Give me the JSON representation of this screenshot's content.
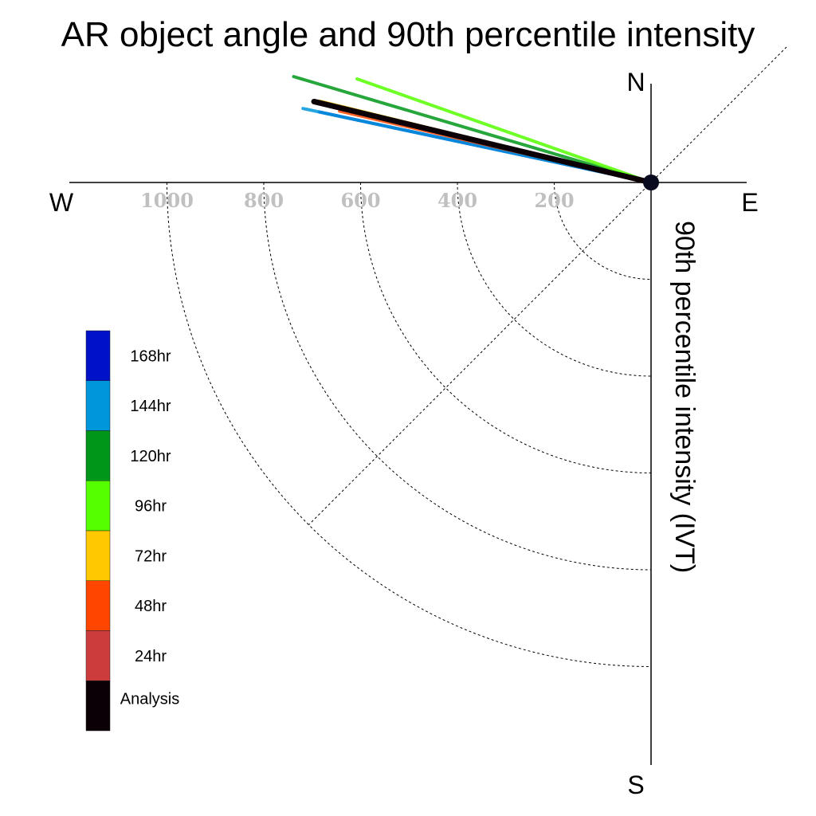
{
  "chart_data": {
    "type": "polar-vector",
    "title": "AR object angle and 90th percentile intensity",
    "ylabel": "90th percentile intensity (IVT)",
    "compass": {
      "north": "N",
      "south": "S",
      "east": "E",
      "west": "W"
    },
    "radial_ticks": [
      {
        "value": 200,
        "label": "200"
      },
      {
        "value": 400,
        "label": "400"
      },
      {
        "value": 600,
        "label": "600"
      },
      {
        "value": 800,
        "label": "800"
      },
      {
        "value": 1000,
        "label": "1000"
      }
    ],
    "radial_max": 1200,
    "diagonal_guide": "NE-SW",
    "series": [
      {
        "name": "168hr",
        "color": "#0012c8",
        "angle_deg": 168,
        "intensity": 700
      },
      {
        "name": "144hr",
        "color": "#0096dc",
        "angle_deg": 168,
        "intensity": 735
      },
      {
        "name": "120hr",
        "color": "#009619",
        "angle_deg": 163.5,
        "intensity": 770
      },
      {
        "name": "96hr",
        "color": "#55ff00",
        "angle_deg": 160.6,
        "intensity": 644
      },
      {
        "name": "72hr",
        "color": "#ffc800",
        "angle_deg": 166.2,
        "intensity": 704
      },
      {
        "name": "48hr",
        "color": "#ff4500",
        "angle_deg": 167.1,
        "intensity": 660
      },
      {
        "name": "24hr",
        "color": "#cd3c3c",
        "angle_deg": 166.5,
        "intensity": 690
      },
      {
        "name": "Analysis",
        "color": "#0a0005",
        "angle_deg": 166.5,
        "intensity": 716
      }
    ],
    "legend_order": [
      "168hr",
      "144hr",
      "120hr",
      "96hr",
      "72hr",
      "48hr",
      "24hr",
      "Analysis"
    ],
    "legend_placement": "bottom-left",
    "grid": true
  }
}
